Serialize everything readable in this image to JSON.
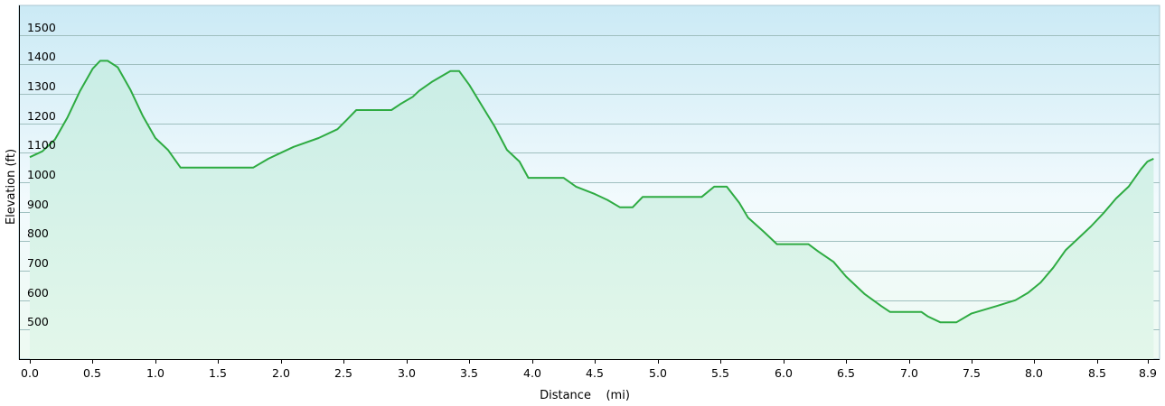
{
  "chart_data": {
    "type": "area",
    "xlabel": "Distance    (mi)",
    "ylabel": "Elevation (ft)",
    "xlim": [
      0,
      8.9
    ],
    "ylim": [
      400,
      1600
    ],
    "x_ticks": [
      "0.0",
      "0.5",
      "1.0",
      "1.5",
      "2.0",
      "2.5",
      "3.0",
      "3.5",
      "4.0",
      "4.5",
      "5.0",
      "5.5",
      "6.0",
      "6.5",
      "7.0",
      "7.5",
      "8.0",
      "8.5",
      "8.9"
    ],
    "y_ticks": [
      "500",
      "600",
      "700",
      "800",
      "900",
      "1000",
      "1100",
      "1200",
      "1300",
      "1400",
      "1500"
    ],
    "grid": true,
    "colors": {
      "line": "#2eab42",
      "fill_top": "#cdeef7",
      "fill_bottom": "#dff7e6",
      "bg_top": "#cbeaf5",
      "bg_mid": "#eef8fb",
      "bg_bottom": "#eefaf2",
      "grid": "#9fbfbf"
    },
    "series": [
      {
        "points": [
          [
            0,
            1085
          ],
          [
            0.1,
            1105
          ],
          [
            0.2,
            1145
          ],
          [
            0.3,
            1220
          ],
          [
            0.4,
            1310
          ],
          [
            0.5,
            1385
          ],
          [
            0.56,
            1412
          ],
          [
            0.62,
            1412
          ],
          [
            0.7,
            1390
          ],
          [
            0.8,
            1315
          ],
          [
            0.9,
            1225
          ],
          [
            1.0,
            1150
          ],
          [
            1.1,
            1110
          ],
          [
            1.2,
            1050
          ],
          [
            1.3,
            1050
          ],
          [
            1.5,
            1050
          ],
          [
            1.78,
            1050
          ],
          [
            1.9,
            1080
          ],
          [
            2.0,
            1100
          ],
          [
            2.1,
            1120
          ],
          [
            2.3,
            1150
          ],
          [
            2.45,
            1180
          ],
          [
            2.52,
            1210
          ],
          [
            2.6,
            1245
          ],
          [
            2.75,
            1245
          ],
          [
            2.88,
            1245
          ],
          [
            2.95,
            1265
          ],
          [
            3.05,
            1290
          ],
          [
            3.1,
            1310
          ],
          [
            3.2,
            1340
          ],
          [
            3.3,
            1365
          ],
          [
            3.35,
            1377
          ],
          [
            3.42,
            1377
          ],
          [
            3.5,
            1330
          ],
          [
            3.6,
            1260
          ],
          [
            3.7,
            1190
          ],
          [
            3.8,
            1110
          ],
          [
            3.9,
            1070
          ],
          [
            3.97,
            1015
          ],
          [
            4.1,
            1015
          ],
          [
            4.25,
            1015
          ],
          [
            4.35,
            985
          ],
          [
            4.5,
            960
          ],
          [
            4.6,
            940
          ],
          [
            4.7,
            915
          ],
          [
            4.8,
            915
          ],
          [
            4.88,
            950
          ],
          [
            5.0,
            950
          ],
          [
            5.15,
            950
          ],
          [
            5.35,
            950
          ],
          [
            5.45,
            985
          ],
          [
            5.55,
            985
          ],
          [
            5.65,
            930
          ],
          [
            5.72,
            880
          ],
          [
            5.85,
            830
          ],
          [
            5.95,
            790
          ],
          [
            6.1,
            790
          ],
          [
            6.2,
            790
          ],
          [
            6.28,
            765
          ],
          [
            6.4,
            730
          ],
          [
            6.5,
            680
          ],
          [
            6.65,
            620
          ],
          [
            6.78,
            580
          ],
          [
            6.85,
            560
          ],
          [
            7.0,
            560
          ],
          [
            7.1,
            560
          ],
          [
            7.15,
            545
          ],
          [
            7.25,
            525
          ],
          [
            7.38,
            525
          ],
          [
            7.5,
            555
          ],
          [
            7.7,
            580
          ],
          [
            7.85,
            600
          ],
          [
            7.95,
            625
          ],
          [
            8.05,
            660
          ],
          [
            8.15,
            710
          ],
          [
            8.25,
            770
          ],
          [
            8.35,
            810
          ],
          [
            8.45,
            850
          ],
          [
            8.55,
            895
          ],
          [
            8.65,
            945
          ],
          [
            8.75,
            985
          ],
          [
            8.85,
            1045
          ],
          [
            8.9,
            1070
          ],
          [
            8.95,
            1080
          ]
        ]
      }
    ]
  }
}
